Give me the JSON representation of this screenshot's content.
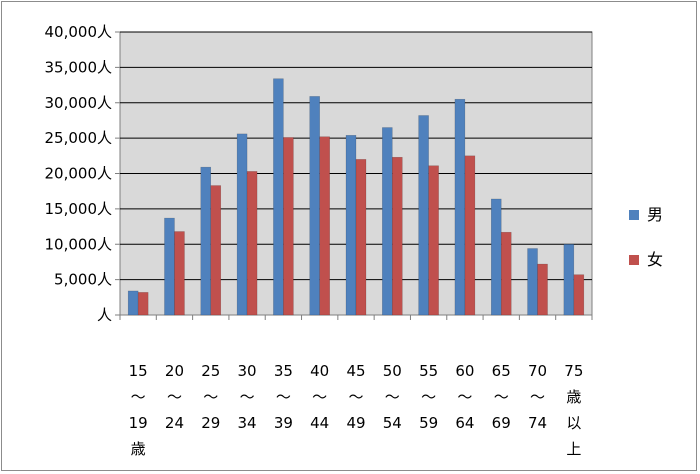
{
  "chart_data": {
    "type": "bar",
    "title": "",
    "xlabel": "",
    "ylabel": "",
    "ylim": [
      0,
      40000
    ],
    "y_tick_values": [
      0,
      5000,
      10000,
      15000,
      20000,
      25000,
      30000,
      35000,
      40000
    ],
    "y_tick_labels": [
      "人",
      "5,000人",
      "10,000人",
      "15,000人",
      "20,000人",
      "25,000人",
      "30,000人",
      "35,000人",
      "40,000人"
    ],
    "grid": true,
    "legend_position": "right",
    "categories": [
      [
        "15",
        "～",
        "19",
        "歳"
      ],
      [
        "20",
        "～",
        "24"
      ],
      [
        "25",
        "～",
        "29"
      ],
      [
        "30",
        "～",
        "34"
      ],
      [
        "35",
        "～",
        "39"
      ],
      [
        "40",
        "～",
        "44"
      ],
      [
        "45",
        "～",
        "49"
      ],
      [
        "50",
        "～",
        "54"
      ],
      [
        "55",
        "～",
        "59"
      ],
      [
        "60",
        "～",
        "64"
      ],
      [
        "65",
        "～",
        "69"
      ],
      [
        "70",
        "～",
        "74"
      ],
      [
        "75",
        "歳",
        "以",
        "上"
      ]
    ],
    "series": [
      {
        "name": "男",
        "color": "#4f81bd",
        "values": [
          3400,
          13700,
          20900,
          25600,
          33400,
          30900,
          25400,
          26500,
          28200,
          30500,
          16400,
          9400,
          10000
        ]
      },
      {
        "name": "女",
        "color": "#c0504d",
        "values": [
          3200,
          11800,
          18300,
          20300,
          25100,
          25200,
          22000,
          22300,
          21100,
          22500,
          11700,
          7200,
          5700
        ]
      }
    ],
    "plot_background": "#d9d9d9"
  }
}
